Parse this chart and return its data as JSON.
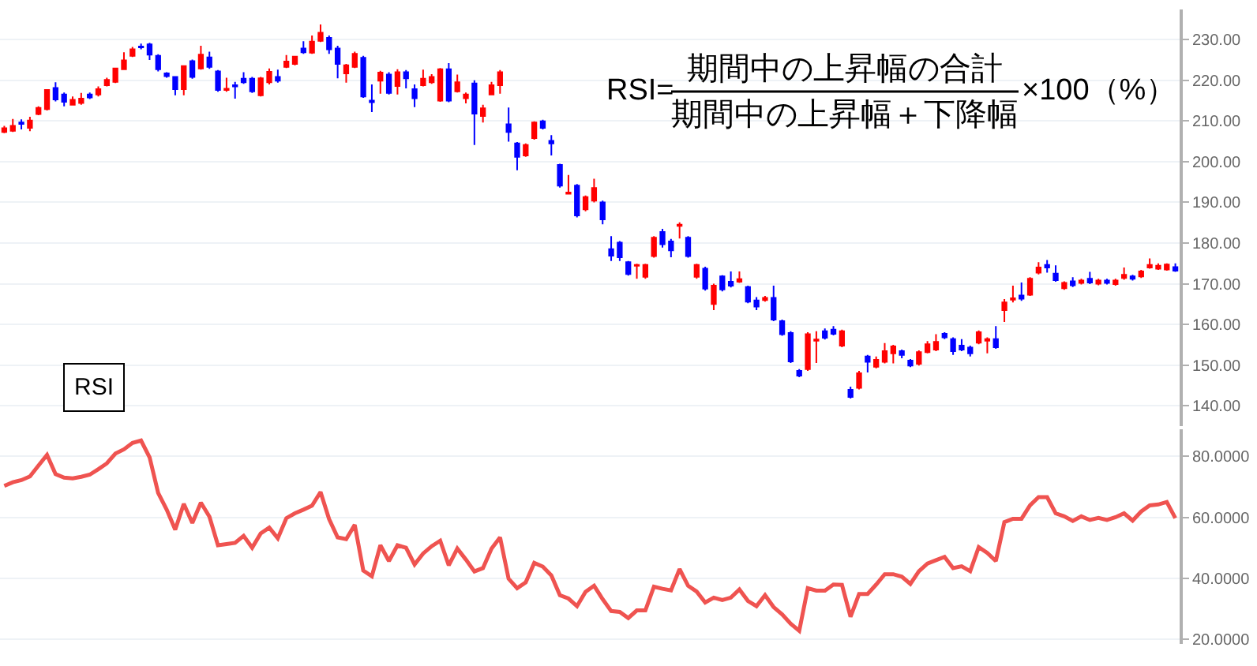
{
  "chart_data": [
    {
      "type": "candlestick",
      "categories": [
        null,
        null,
        null,
        null,
        null,
        null,
        null,
        null,
        null,
        null,
        null,
        null,
        null,
        null,
        null,
        null,
        null,
        null,
        null,
        null,
        null,
        null,
        null,
        null,
        null,
        null,
        null,
        null,
        null,
        null,
        null,
        null,
        null,
        null,
        null,
        null,
        null,
        null,
        null,
        null,
        null,
        null,
        null,
        null,
        null,
        null,
        null,
        null,
        null,
        null,
        null,
        null,
        null,
        null,
        null,
        null,
        null,
        null,
        null,
        null,
        null,
        null,
        null,
        null,
        null,
        null,
        null,
        null,
        null,
        null,
        null,
        null,
        null,
        null,
        null,
        null,
        null,
        null,
        null,
        null,
        null,
        null,
        null,
        null,
        null,
        null,
        null,
        null,
        null,
        null,
        null,
        null,
        null,
        null,
        null,
        null,
        null,
        null,
        null,
        null,
        null,
        null,
        null,
        null,
        null,
        null,
        null,
        null,
        null,
        null,
        null,
        null,
        null,
        null,
        null,
        null,
        null,
        null,
        null,
        null,
        null,
        null,
        null,
        null,
        null,
        null,
        null,
        null,
        null,
        null,
        null,
        null,
        null,
        null,
        null,
        null,
        null,
        null
      ],
      "colors": [
        "#ff0000",
        "#ff0000",
        "#0000ff",
        "#ff0000",
        "#ff0000",
        "#ff0000",
        "#0000ff",
        "#0000ff",
        "#ff0000",
        "#ff0000",
        "#0000ff",
        "#ff0000",
        "#ff0000",
        "#ff0000",
        "#ff0000",
        "#ff0000",
        "#0000ff",
        "#0000ff",
        "#0000ff",
        "#0000ff",
        "#0000ff",
        "#ff0000",
        "#0000ff",
        "#ff0000",
        "#0000ff",
        "#0000ff",
        "#ff0000",
        "#0000ff",
        "#0000ff",
        "#0000ff",
        "#ff0000",
        "#ff0000",
        "#0000ff",
        "#ff0000",
        "#ff0000",
        "#0000ff",
        "#ff0000",
        "#ff0000",
        "#0000ff",
        "#0000ff",
        "#ff0000",
        "#ff0000",
        "#0000ff",
        "#0000ff",
        "#ff0000",
        "#0000ff",
        "#ff0000",
        "#0000ff",
        "#0000ff",
        "#ff0000",
        "#ff0000",
        "#ff0000",
        "#0000ff",
        "#ff0000",
        "#ff0000",
        "#0000ff",
        "#ff0000",
        "#ff0000",
        "#ff0000",
        "#0000ff",
        "#0000ff",
        "#ff0000",
        "#ff0000",
        "#0000ff",
        "#0000ff",
        "#0000ff",
        "#ff0000",
        "#0000ff",
        "#ff0000",
        "#ff0000",
        "#0000ff",
        "#0000ff",
        "#0000ff",
        "#0000ff",
        "#ff0000",
        "#ff0000",
        "#ff0000",
        "#0000ff",
        "#0000ff",
        "#ff0000",
        "#0000ff",
        "#ff0000",
        "#0000ff",
        "#ff0000",
        "#0000ff",
        "#0000ff",
        "#ff0000",
        "#0000ff",
        "#0000ff",
        "#ff0000",
        "#0000ff",
        "#0000ff",
        "#0000ff",
        "#0000ff",
        "#ff0000",
        "#ff0000",
        "#0000ff",
        "#0000ff",
        "#ff0000",
        "#0000ff",
        "#ff0000",
        "#0000ff",
        "#ff0000",
        "#ff0000",
        "#ff0000",
        "#0000ff",
        "#0000ff",
        "#ff0000",
        "#ff0000",
        "#ff0000",
        "#0000ff",
        "#0000ff",
        "#0000ff",
        "#0000ff",
        "#ff0000",
        "#ff0000",
        "#0000ff",
        "#ff0000",
        "#ff0000",
        "#0000ff",
        "#ff0000",
        "#ff0000",
        "#0000ff",
        "#0000ff",
        "#ff0000",
        "#0000ff",
        "#ff0000",
        "#0000ff",
        "#ff0000",
        "#0000ff",
        "#ff0000",
        "#ff0000",
        "#0000ff",
        "#ff0000",
        "#ff0000",
        "#ff0000",
        "#ff0000",
        "#0000ff"
      ],
      "ohlc": [
        [
          207.3,
          208.8,
          207.0,
          208.2
        ],
        [
          207.6,
          210.5,
          207.3,
          208.8
        ],
        [
          209.6,
          210.4,
          207.9,
          209.3
        ],
        [
          208.3,
          211,
          207.5,
          210.1
        ],
        [
          211.7,
          213.6,
          211.4,
          213.2
        ],
        [
          212.9,
          217.8,
          212.6,
          217.6
        ],
        [
          218.1,
          219.5,
          214.8,
          215.3
        ],
        [
          216.5,
          217,
          213.6,
          214.7
        ],
        [
          214,
          216,
          213.8,
          215.2
        ],
        [
          214.4,
          216.9,
          214,
          215.5
        ],
        [
          216.5,
          217,
          215.4,
          215.8
        ],
        [
          216.5,
          218.5,
          216,
          217.8
        ],
        [
          218.8,
          220.6,
          218.5,
          220.1
        ],
        [
          219.6,
          223.1,
          219.3,
          222.9
        ],
        [
          222.7,
          226.9,
          222.5,
          224.9
        ],
        [
          226,
          228.2,
          225.7,
          227.6
        ],
        [
          228.3,
          229,
          227.6,
          228.1
        ],
        [
          228.8,
          229.2,
          225,
          226.3
        ],
        [
          226,
          226.4,
          222.2,
          222.7
        ],
        [
          221.7,
          222,
          220.6,
          221
        ],
        [
          220.8,
          221,
          216.3,
          217.8
        ],
        [
          217.8,
          223.7,
          216.3,
          223.5
        ],
        [
          224.7,
          225.1,
          220.4,
          220.8
        ],
        [
          222.9,
          228.5,
          222.6,
          226.3
        ],
        [
          225.6,
          227,
          222.8,
          223.3
        ],
        [
          222.2,
          222.5,
          217.2,
          217.6
        ],
        [
          217.6,
          220.6,
          217.2,
          217.9
        ],
        [
          218.8,
          219.6,
          215.5,
          218.5
        ],
        [
          220.4,
          222,
          219.1,
          219.5
        ],
        [
          220.4,
          220.8,
          216.9,
          217.3
        ],
        [
          216.3,
          220.8,
          216,
          220.5
        ],
        [
          219.5,
          222.9,
          219,
          222.1
        ],
        [
          220.8,
          222.6,
          219.4,
          219.9
        ],
        [
          223.3,
          226.2,
          223,
          224.6
        ],
        [
          224,
          226,
          223.7,
          225.8
        ],
        [
          227.8,
          229.6,
          226.5,
          226.9
        ],
        [
          226.8,
          231,
          226.5,
          229.5
        ],
        [
          229.7,
          233.7,
          229.4,
          231.7
        ],
        [
          230.4,
          231,
          226.5,
          227.6
        ],
        [
          227.8,
          228.5,
          220.5,
          224
        ],
        [
          221.7,
          224,
          219.4,
          223.7
        ],
        [
          223.3,
          227,
          223,
          226.5
        ],
        [
          225.5,
          226,
          215.7,
          216
        ],
        [
          215,
          219,
          212.2,
          214.6
        ],
        [
          219.9,
          222.3,
          216.7,
          221.9
        ],
        [
          221.4,
          222,
          216.5,
          216.9
        ],
        [
          218.6,
          222.7,
          216.5,
          222
        ],
        [
          222,
          222.5,
          218,
          220.5
        ],
        [
          217.8,
          219,
          213.4,
          215.6
        ],
        [
          218.8,
          222.6,
          218.5,
          220.4
        ],
        [
          219.5,
          221.5,
          219.1,
          220.8
        ],
        [
          215,
          223,
          214.7,
          222.7
        ],
        [
          222.7,
          224.2,
          214.6,
          215
        ],
        [
          217.3,
          221.4,
          217,
          219.5
        ],
        [
          215.6,
          217,
          214.3,
          216.5
        ],
        [
          219.2,
          220,
          204.1,
          211.8
        ],
        [
          211.2,
          214,
          209.6,
          213.1
        ],
        [
          216.5,
          219.6,
          216.3,
          218.8
        ],
        [
          218.8,
          222.5,
          216.7,
          222
        ],
        [
          209.2,
          213.3,
          204.9,
          207.3
        ],
        [
          204.5,
          204.8,
          197.9,
          201.2
        ],
        [
          201.5,
          204.5,
          201.2,
          204.1
        ],
        [
          205.8,
          209.9,
          205.4,
          209.6
        ],
        [
          209.9,
          210.3,
          207.9,
          208.3
        ],
        [
          205.1,
          206.5,
          201.5,
          204.5
        ],
        [
          199.2,
          199.5,
          193.6,
          194.1
        ],
        [
          192.1,
          196.7,
          192,
          192.4
        ],
        [
          194.1,
          194.5,
          186.3,
          186.8
        ],
        [
          188.3,
          191.7,
          187.8,
          191.3
        ],
        [
          190.4,
          195.8,
          190,
          193.5
        ],
        [
          190,
          190.4,
          184.6,
          185.8
        ],
        [
          178.5,
          181.7,
          175.6,
          176.9
        ],
        [
          180.1,
          180.5,
          175.6,
          176.5
        ],
        [
          175.3,
          175.6,
          172,
          172.4
        ],
        [
          174.4,
          174.9,
          171.2,
          174.6
        ],
        [
          171.7,
          174.9,
          171.2,
          174.6
        ],
        [
          176.8,
          181.7,
          176.4,
          181.3
        ],
        [
          182.7,
          183.5,
          178.9,
          179.7
        ],
        [
          180.4,
          181,
          176.5,
          178.2
        ],
        [
          184.2,
          185.1,
          181.1,
          184.5
        ],
        [
          181.3,
          181.7,
          176.4,
          176.8
        ],
        [
          171.7,
          174.9,
          171.2,
          174.6
        ],
        [
          173.7,
          174.2,
          168.3,
          168.8
        ],
        [
          165,
          170,
          163.5,
          169.5
        ],
        [
          171.8,
          172.1,
          168.1,
          168.6
        ],
        [
          170.5,
          173,
          169.1,
          169.5
        ],
        [
          170.5,
          173,
          170.2,
          171.1
        ],
        [
          169.2,
          169.5,
          165.2,
          165.6
        ],
        [
          165.9,
          166.7,
          163.5,
          164.4
        ],
        [
          166,
          167,
          165.6,
          166.5
        ],
        [
          166.5,
          169.5,
          160.8,
          161.2
        ],
        [
          160.8,
          161.2,
          157.2,
          157.6
        ],
        [
          157.9,
          158.3,
          150.5,
          150.9
        ],
        [
          148.6,
          149,
          147,
          147.4
        ],
        [
          149,
          158.1,
          148.6,
          157.6
        ],
        [
          156,
          158.3,
          150.5,
          156.3
        ],
        [
          158.3,
          159,
          156.3,
          156.7
        ],
        [
          158.7,
          159.6,
          157.3,
          157.7
        ],
        [
          154.8,
          158.7,
          154.4,
          158.3
        ],
        [
          143.9,
          144.7,
          141.8,
          142.2
        ],
        [
          144.4,
          148.6,
          144,
          148
        ],
        [
          152.1,
          152.5,
          148.2,
          150.8
        ],
        [
          149.6,
          152.1,
          149.2,
          151.3
        ],
        [
          150.8,
          155.4,
          150.4,
          153.4
        ],
        [
          152.9,
          155,
          150.4,
          154.6
        ],
        [
          153.4,
          153.8,
          151.7,
          152.5
        ],
        [
          151.1,
          151.5,
          149.5,
          149.9
        ],
        [
          150.3,
          153.6,
          149.9,
          153.2
        ],
        [
          153.2,
          155.9,
          152.9,
          155.1
        ],
        [
          153.8,
          157.6,
          153.4,
          155.7
        ],
        [
          157.7,
          158.1,
          156.4,
          156.8
        ],
        [
          156.4,
          156.8,
          152.5,
          153.4
        ],
        [
          154.8,
          156.4,
          153.4,
          153.8
        ],
        [
          154.3,
          154.8,
          152.1,
          152.9
        ],
        [
          155.5,
          158.5,
          155.1,
          158.1
        ],
        [
          156,
          156.8,
          152.9,
          156.4
        ],
        [
          156.4,
          159.6,
          154,
          154.4
        ],
        [
          163.5,
          166.2,
          160.6,
          165.4
        ],
        [
          166.1,
          169.5,
          165.4,
          166.4
        ],
        [
          167.1,
          170.3,
          165.8,
          166.3
        ],
        [
          167.3,
          171.6,
          167,
          171.2
        ],
        [
          172.7,
          175.3,
          172.3,
          174
        ],
        [
          174.6,
          175.8,
          172.7,
          174
        ],
        [
          172.5,
          174.5,
          170.5,
          170.9
        ],
        [
          168.9,
          170.6,
          168.5,
          170.2
        ],
        [
          170.6,
          171.6,
          169.2,
          169.6
        ],
        [
          170.2,
          171.2,
          169.8,
          170.8
        ],
        [
          171.2,
          172.9,
          169.9,
          170.3
        ],
        [
          170,
          171.2,
          169.6,
          170.8
        ],
        [
          170.8,
          171.2,
          169.8,
          170.2
        ],
        [
          169.9,
          171.2,
          169.5,
          170.8
        ],
        [
          171.4,
          174,
          171,
          172.2
        ],
        [
          171.8,
          172.2,
          170.8,
          171.2
        ],
        [
          171.8,
          173.4,
          171.4,
          173
        ],
        [
          174,
          176.2,
          173.7,
          174.6
        ],
        [
          173.7,
          175,
          173.4,
          174.4
        ],
        [
          173.5,
          175,
          173.2,
          174.7
        ],
        [
          174.1,
          175,
          172.9,
          173.2
        ]
      ],
      "ylim": [
        135,
        237.4
      ],
      "yticks": [
        {
          "value": 140,
          "label": "140.00"
        },
        {
          "value": 150,
          "label": "150.00"
        },
        {
          "value": 160,
          "label": "160.00"
        },
        {
          "value": 170,
          "label": "170.00"
        },
        {
          "value": 180,
          "label": "180.00"
        },
        {
          "value": 190,
          "label": "190.00"
        },
        {
          "value": 200,
          "label": "200.00"
        },
        {
          "value": 210,
          "label": "210.00"
        },
        {
          "value": 220,
          "label": "220.00"
        },
        {
          "value": 230,
          "label": "230.00"
        }
      ],
      "grid": "y",
      "tick_labels": "y",
      "annotations": [
        "RSI=",
        "期間中の上昇幅の合計",
        "期間中の上昇幅＋下降幅",
        "×100（%）",
        "RSI"
      ]
    },
    {
      "type": "line",
      "line_style": "solid",
      "categories": [
        null,
        null,
        null,
        null,
        null,
        null,
        null,
        null,
        null,
        null,
        null,
        null,
        null,
        null,
        null,
        null,
        null,
        null,
        null,
        null,
        null,
        null,
        null,
        null,
        null,
        null,
        null,
        null,
        null,
        null,
        null,
        null,
        null,
        null,
        null,
        null,
        null,
        null,
        null,
        null,
        null,
        null,
        null,
        null,
        null,
        null,
        null,
        null,
        null,
        null,
        null,
        null,
        null,
        null,
        null,
        null,
        null,
        null,
        null,
        null,
        null,
        null,
        null,
        null,
        null,
        null,
        null,
        null,
        null,
        null,
        null,
        null,
        null,
        null,
        null,
        null,
        null,
        null,
        null,
        null,
        null,
        null,
        null,
        null,
        null,
        null,
        null,
        null,
        null,
        null,
        null,
        null,
        null,
        null,
        null,
        null,
        null,
        null,
        null,
        null,
        null,
        null,
        null,
        null,
        null,
        null,
        null,
        null,
        null,
        null,
        null,
        null,
        null,
        null,
        null,
        null,
        null,
        null,
        null,
        null,
        null,
        null,
        null,
        null,
        null,
        null,
        null,
        null,
        null,
        null,
        null,
        null,
        null,
        null,
        null,
        null,
        null,
        null
      ],
      "series": [
        {
          "color": "#ef5350",
          "values": [
            70.3,
            71.5,
            72.2,
            73.4,
            77.0,
            80.5,
            74.2,
            73.0,
            72.8,
            73.3,
            74.0,
            75.8,
            77.7,
            80.9,
            82.3,
            84.4,
            85.2,
            79.7,
            68.0,
            62.5,
            55.9,
            64.4,
            58.1,
            64.8,
            60.2,
            50.8,
            51.2,
            51.6,
            53.9,
            50.0,
            54.7,
            56.6,
            53.1,
            59.7,
            61.3,
            62.5,
            63.8,
            68.3,
            59.4,
            53.4,
            52.8,
            57.5,
            42.5,
            40.6,
            50.8,
            45.6,
            50.8,
            50.0,
            44.5,
            48.1,
            50.5,
            52.3,
            44.2,
            49.7,
            46.1,
            42.2,
            43.3,
            49.7,
            53.4,
            39.8,
            36.7,
            38.6,
            45.0,
            43.8,
            40.9,
            34.4,
            33.3,
            30.8,
            35.5,
            37.5,
            33.1,
            29.2,
            28.9,
            26.9,
            29.4,
            29.4,
            37.2,
            36.5,
            36.0,
            43.0,
            37.5,
            35.6,
            32.0,
            33.6,
            32.8,
            33.6,
            36.3,
            32.5,
            30.8,
            34.4,
            30.5,
            28.1,
            25.0,
            22.7,
            36.7,
            35.9,
            35.9,
            37.9,
            37.8,
            27.3,
            34.8,
            34.8,
            37.9,
            41.3,
            41.3,
            40.5,
            38.1,
            42.3,
            44.8,
            45.9,
            47.0,
            43.3,
            43.9,
            42.3,
            50.2,
            48.3,
            45.6,
            58.4,
            59.5,
            59.5,
            63.9,
            66.6,
            66.6,
            61.3,
            60.3,
            58.8,
            60.3,
            59.1,
            59.8,
            59.1,
            60.0,
            61.3,
            58.9,
            61.9,
            63.9,
            64.2,
            65.0,
            59.7
          ]
        }
      ],
      "ylim": [
        18.4,
        88.9
      ],
      "yticks": [
        {
          "value": 20,
          "label": "20.0000"
        },
        {
          "value": 40,
          "label": "40.0000"
        },
        {
          "value": 60,
          "label": "60.0000"
        },
        {
          "value": 80,
          "label": "80.0000"
        }
      ],
      "grid": "y",
      "tick_labels": "y"
    }
  ]
}
